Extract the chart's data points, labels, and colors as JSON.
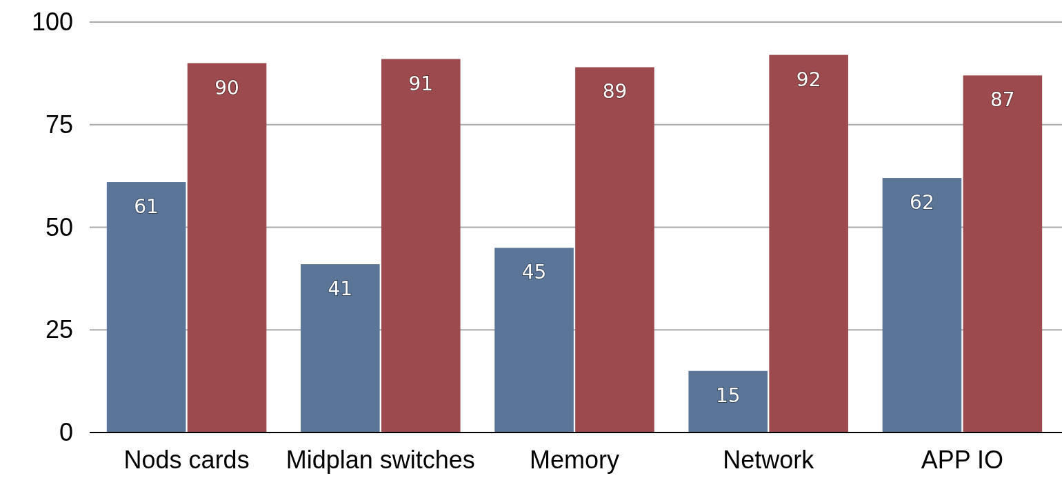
{
  "chart_data": {
    "type": "bar",
    "categories": [
      "Nods cards",
      "Midplan switches",
      "Memory",
      "Network",
      "APP IO"
    ],
    "series": [
      {
        "color": "#5a7597",
        "values": [
          61,
          41,
          45,
          15,
          62
        ]
      },
      {
        "color": "#9c4a4e",
        "values": [
          90,
          91,
          89,
          92,
          87
        ]
      }
    ],
    "ylim": [
      0,
      100
    ],
    "yticks": [
      0,
      25,
      50,
      75,
      100
    ],
    "grid": "y",
    "data_labels": true
  }
}
